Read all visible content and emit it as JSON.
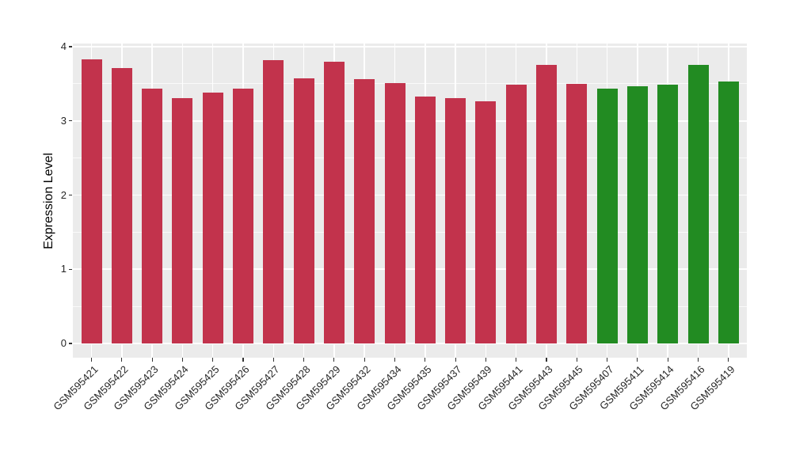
{
  "chart_data": {
    "type": "bar",
    "title": "",
    "xlabel": "",
    "ylabel": "Expression Level",
    "ylim": [
      0,
      4
    ],
    "yticks": [
      0,
      1,
      2,
      3,
      4
    ],
    "grid": true,
    "legend": "none",
    "categories": [
      "GSM595421",
      "GSM595422",
      "GSM595423",
      "GSM595424",
      "GSM595425",
      "GSM595426",
      "GSM595427",
      "GSM595428",
      "GSM595429",
      "GSM595432",
      "GSM595434",
      "GSM595435",
      "GSM595437",
      "GSM595439",
      "GSM595441",
      "GSM595443",
      "GSM595445",
      "GSM595407",
      "GSM595411",
      "GSM595414",
      "GSM595416",
      "GSM595419"
    ],
    "values": [
      3.83,
      3.71,
      3.44,
      3.31,
      3.38,
      3.44,
      3.82,
      3.57,
      3.8,
      3.56,
      3.51,
      3.33,
      3.31,
      3.26,
      3.49,
      3.75,
      3.5,
      3.43,
      3.47,
      3.49,
      3.76,
      3.53
    ],
    "bar_groups": [
      "crimson",
      "crimson",
      "crimson",
      "crimson",
      "crimson",
      "crimson",
      "crimson",
      "crimson",
      "crimson",
      "crimson",
      "crimson",
      "crimson",
      "crimson",
      "crimson",
      "crimson",
      "crimson",
      "crimson",
      "green",
      "green",
      "green",
      "green",
      "green"
    ],
    "palette": {
      "crimson": "#C2334C",
      "green": "#228B22"
    }
  },
  "style": {
    "figure_bg": "#FFFFFF",
    "panel_bg": "#EBEBEB",
    "grid_color": "#FFFFFF",
    "tick_color": "#333333",
    "axis_text_color": "#262626",
    "axis_title_color": "#000000"
  }
}
